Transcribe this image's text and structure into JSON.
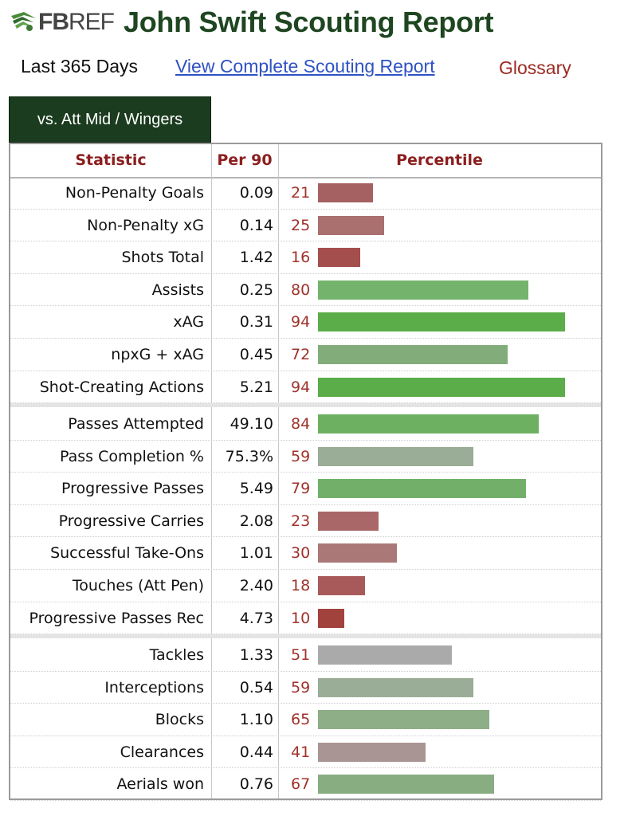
{
  "header": {
    "logo_fb": "FB",
    "logo_ref": "REF",
    "title": "John Swift Scouting Report"
  },
  "subnav": {
    "period": "Last 365 Days",
    "complete_report_link": "View Complete Scouting Report",
    "glossary_link": "Glossary"
  },
  "tab": {
    "label": "vs. Att Mid / Wingers"
  },
  "table": {
    "columns": [
      "Statistic",
      "Per 90",
      "Percentile"
    ],
    "groups": [
      {
        "rows": [
          {
            "stat": "Non-Penalty Goals",
            "per90": "0.09",
            "percentile": 21,
            "bar_color": "#a56162"
          },
          {
            "stat": "Non-Penalty xG",
            "per90": "0.14",
            "percentile": 25,
            "bar_color": "#a9706f"
          },
          {
            "stat": "Shots Total",
            "per90": "1.42",
            "percentile": 16,
            "bar_color": "#a44f4d"
          },
          {
            "stat": "Assists",
            "per90": "0.25",
            "percentile": 80,
            "bar_color": "#74b36b"
          },
          {
            "stat": "xAG",
            "per90": "0.31",
            "percentile": 94,
            "bar_color": "#5aad49"
          },
          {
            "stat": "npxG + xAG",
            "per90": "0.45",
            "percentile": 72,
            "bar_color": "#82ad7a"
          },
          {
            "stat": "Shot-Creating Actions",
            "per90": "5.21",
            "percentile": 94,
            "bar_color": "#5aad49"
          }
        ]
      },
      {
        "rows": [
          {
            "stat": "Passes Attempted",
            "per90": "49.10",
            "percentile": 84,
            "bar_color": "#6db062"
          },
          {
            "stat": "Pass Completion %",
            "per90": "75.3%",
            "percentile": 59,
            "bar_color": "#9aad96"
          },
          {
            "stat": "Progressive Passes",
            "per90": "5.49",
            "percentile": 79,
            "bar_color": "#72b06a"
          },
          {
            "stat": "Progressive Carries",
            "per90": "2.08",
            "percentile": 23,
            "bar_color": "#a96767"
          },
          {
            "stat": "Successful Take-Ons",
            "per90": "1.01",
            "percentile": 30,
            "bar_color": "#aa7877"
          },
          {
            "stat": "Touches (Att Pen)",
            "per90": "2.40",
            "percentile": 18,
            "bar_color": "#a85a5a"
          },
          {
            "stat": "Progressive Passes Rec",
            "per90": "4.73",
            "percentile": 10,
            "bar_color": "#a2423d"
          }
        ]
      },
      {
        "rows": [
          {
            "stat": "Tackles",
            "per90": "1.33",
            "percentile": 51,
            "bar_color": "#aaaaaa"
          },
          {
            "stat": "Interceptions",
            "per90": "0.54",
            "percentile": 59,
            "bar_color": "#9aad96"
          },
          {
            "stat": "Blocks",
            "per90": "1.10",
            "percentile": 65,
            "bar_color": "#8eae88"
          },
          {
            "stat": "Clearances",
            "per90": "0.44",
            "percentile": 41,
            "bar_color": "#a99594"
          },
          {
            "stat": "Aerials won",
            "per90": "0.76",
            "percentile": 67,
            "bar_color": "#87ad80"
          }
        ]
      }
    ]
  }
}
